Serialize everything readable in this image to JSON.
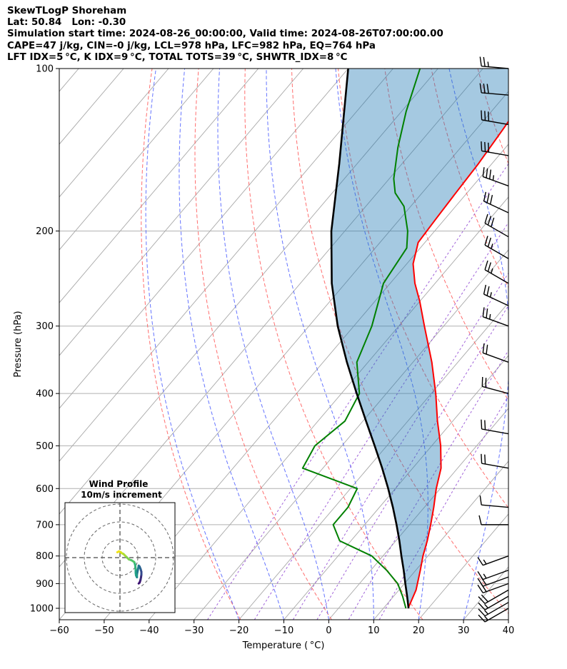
{
  "header": {
    "line1": "SkewTLogP Shoreham",
    "line2": "Lat: 50.84   Lon: -0.30",
    "line3": "Simulation start time: 2024-08-26_00:00:00, Valid time: 2024-08-26T07:00:00.00",
    "line4": "CAPE=47 j/kg, CIN=-0 j/kg, LCL=978 hPa, LFC=982 hPa, EQ=764 hPa",
    "line5": "LFT IDX=5 °C, K IDX=9 °C, TOTAL TOTS=39 °C, SHWTR_IDX=8 °C"
  },
  "chart_data": {
    "type": "line",
    "subtype": "skew-t log-p",
    "xlabel": "Temperature ( °C)",
    "ylabel": "Pressure (hPa)",
    "xlim": [
      -60,
      40
    ],
    "ylim": [
      1050,
      100
    ],
    "x_ticks": [
      -60,
      -50,
      -40,
      -30,
      -20,
      -10,
      0,
      10,
      20,
      30,
      40
    ],
    "x_tick_labels": [
      "−60",
      "−50",
      "−40",
      "−30",
      "−20",
      "−10",
      "0",
      "10",
      "20",
      "30",
      "40"
    ],
    "y_ticks": [
      1000,
      900,
      800,
      700,
      600,
      500,
      400,
      300,
      200,
      100
    ],
    "y_tick_labels": [
      "1000",
      "900",
      "800",
      "700",
      "600",
      "500",
      "400",
      "300",
      "200",
      "100"
    ],
    "grid": true,
    "series": [
      {
        "color": "#ff0000",
        "pressure": [
          1000,
          925,
          850,
          800,
          750,
          700,
          650,
          600,
          550,
          500,
          450,
          400,
          350,
          300,
          270,
          250,
          230,
          210,
          190,
          170,
          150,
          130,
          115,
          100
        ],
        "temperature": [
          15.5,
          13.8,
          11.0,
          8.9,
          7.0,
          4.7,
          2.1,
          -0.9,
          -3.7,
          -8.0,
          -13.4,
          -19.0,
          -25.8,
          -34.3,
          -40.0,
          -44.5,
          -48.6,
          -51.5,
          -52.0,
          -52.5,
          -53.0,
          -54.0,
          -55.0,
          -56.0
        ]
      },
      {
        "color": "#008000",
        "pressure": [
          1000,
          950,
          900,
          850,
          800,
          750,
          700,
          650,
          600,
          550,
          500,
          450,
          400,
          350,
          300,
          250,
          215,
          200,
          180,
          170,
          160,
          140,
          120,
          100
        ],
        "dewpoint": [
          15.0,
          12.0,
          8.5,
          3.5,
          -2.5,
          -12.5,
          -17.0,
          -17.0,
          -18.5,
          -34.5,
          -36.0,
          -34.0,
          -36.0,
          -42.5,
          -46.0,
          -51.5,
          -53.0,
          -56.0,
          -61.5,
          -66.0,
          -69.0,
          -74.0,
          -79.0,
          -84.0
        ]
      },
      {
        "color": "#000000",
        "pressure": [
          1000,
          950,
          900,
          850,
          800,
          750,
          700,
          650,
          600,
          550,
          500,
          450,
          400,
          350,
          300,
          250,
          200,
          150,
          100
        ],
        "temperature": [
          15.6,
          13.0,
          10.2,
          7.3,
          4.1,
          0.8,
          -2.9,
          -7.0,
          -11.6,
          -16.8,
          -22.7,
          -29.3,
          -36.6,
          -44.7,
          -53.6,
          -63.0,
          -73.0,
          -84.0,
          -100.0
        ]
      }
    ],
    "wind_barbs": {
      "pressure": [
        1000,
        975,
        950,
        925,
        900,
        875,
        850,
        800,
        700,
        650,
        550,
        475,
        400,
        350,
        300,
        275,
        250,
        225,
        205,
        185,
        165,
        145,
        127,
        112,
        100
      ],
      "speed_kt": [
        15,
        15,
        15,
        20,
        20,
        20,
        15,
        15,
        10,
        10,
        20,
        20,
        20,
        20,
        25,
        25,
        25,
        25,
        30,
        30,
        35,
        30,
        30,
        30,
        25
      ],
      "direction_deg": [
        240,
        240,
        240,
        240,
        250,
        250,
        250,
        250,
        270,
        275,
        280,
        280,
        285,
        290,
        290,
        295,
        300,
        300,
        300,
        295,
        290,
        280,
        280,
        275,
        275
      ]
    },
    "inset": {
      "title": "Wind Profile",
      "subtitle": "10m/s increment",
      "hodograph_u": [
        10.5,
        11.0,
        11.5,
        11.8,
        12.0,
        12.0,
        11.6,
        11.0,
        10.5,
        10.0,
        9.5,
        9.5,
        9.0,
        8.8,
        8.8,
        8.5,
        8.0,
        6.5,
        5.0,
        4.0,
        3.0,
        2.0,
        1.0,
        0.5,
        -0.5,
        -1.5
      ],
      "hodograph_v": [
        -14.5,
        -14.0,
        -12.5,
        -11.0,
        -9.5,
        -8.0,
        -6.5,
        -5.0,
        -4.5,
        -7.0,
        -9.5,
        -11.0,
        -10.0,
        -8.5,
        -6.5,
        -4.0,
        -2.5,
        -1.5,
        -1.0,
        0.0,
        1.0,
        2.0,
        2.5,
        3.0,
        3.5,
        3.0
      ]
    }
  }
}
